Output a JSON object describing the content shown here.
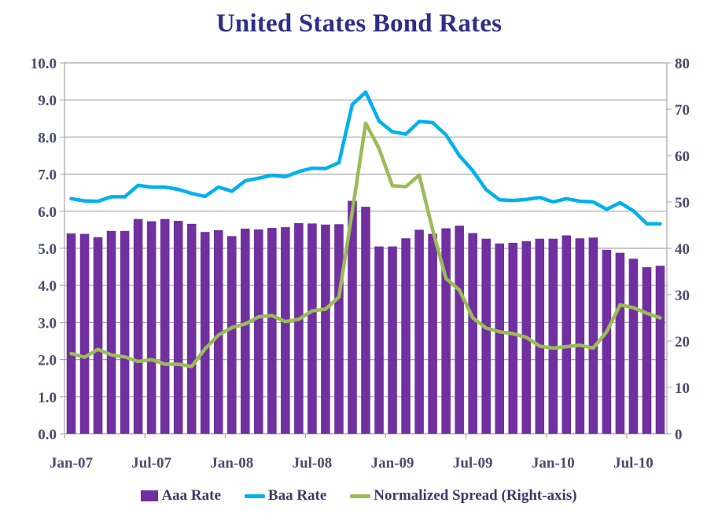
{
  "chart_data": {
    "type": "bar",
    "title": "United States Bond Rates",
    "xlabel": "",
    "ylabel": "",
    "y2label": "",
    "ylim": [
      0,
      10
    ],
    "y2lim": [
      0,
      80
    ],
    "yticks": [
      "0.0",
      "1.0",
      "2.0",
      "3.0",
      "4.0",
      "5.0",
      "6.0",
      "7.0",
      "8.0",
      "9.0",
      "10.0"
    ],
    "y2ticks": [
      "0",
      "10",
      "20",
      "30",
      "40",
      "50",
      "60",
      "70",
      "80"
    ],
    "xtick_labels": [
      "Jan-07",
      "Jul-07",
      "Jan-08",
      "Jul-08",
      "Jan-09",
      "Jul-09",
      "Jan-10",
      "Jul-10"
    ],
    "xtick_every": 6,
    "grid": "horizontal",
    "legend_position": "bottom",
    "categories": [
      "Jan-07",
      "Feb-07",
      "Mar-07",
      "Apr-07",
      "May-07",
      "Jun-07",
      "Jul-07",
      "Aug-07",
      "Sep-07",
      "Oct-07",
      "Nov-07",
      "Dec-07",
      "Jan-08",
      "Feb-08",
      "Mar-08",
      "Apr-08",
      "May-08",
      "Jun-08",
      "Jul-08",
      "Aug-08",
      "Sep-08",
      "Oct-08",
      "Nov-08",
      "Dec-08",
      "Jan-09",
      "Feb-09",
      "Mar-09",
      "Apr-09",
      "May-09",
      "Jun-09",
      "Jul-09",
      "Aug-09",
      "Sep-09",
      "Oct-09",
      "Nov-09",
      "Dec-09",
      "Jan-10",
      "Feb-10",
      "Mar-10",
      "Apr-10",
      "May-10",
      "Jun-10",
      "Jul-10",
      "Aug-10",
      "Sep-10"
    ],
    "series": [
      {
        "name": "Aaa Rate",
        "type": "bar",
        "axis": "left",
        "color": "#7030a0",
        "values": [
          5.4,
          5.39,
          5.3,
          5.47,
          5.47,
          5.79,
          5.73,
          5.79,
          5.74,
          5.66,
          5.44,
          5.49,
          5.33,
          5.53,
          5.51,
          5.55,
          5.57,
          5.68,
          5.67,
          5.64,
          5.65,
          6.28,
          6.12,
          5.05,
          5.05,
          5.27,
          5.5,
          5.39,
          5.54,
          5.61,
          5.41,
          5.26,
          5.13,
          5.15,
          5.19,
          5.26,
          5.26,
          5.35,
          5.27,
          5.29,
          4.96,
          4.88,
          4.72,
          4.49,
          4.53
        ]
      },
      {
        "name": "Baa Rate",
        "type": "line",
        "axis": "left",
        "color": "#00b0f0",
        "values": [
          6.34,
          6.28,
          6.27,
          6.39,
          6.39,
          6.7,
          6.65,
          6.65,
          6.59,
          6.48,
          6.4,
          6.65,
          6.54,
          6.82,
          6.89,
          6.97,
          6.93,
          7.07,
          7.16,
          7.15,
          7.31,
          8.88,
          9.21,
          8.43,
          8.14,
          8.08,
          8.42,
          8.39,
          8.06,
          7.5,
          7.09,
          6.58,
          6.31,
          6.29,
          6.32,
          6.37,
          6.25,
          6.34,
          6.27,
          6.25,
          6.05,
          6.23,
          6.01,
          5.66,
          5.66
        ]
      },
      {
        "name": "Normalized Spread (Right-axis)",
        "type": "line",
        "axis": "right",
        "color": "#9bbb59",
        "values": [
          17.3,
          16.5,
          18.2,
          17.0,
          16.6,
          15.6,
          16.0,
          15.0,
          15.0,
          14.5,
          18.3,
          21.3,
          22.9,
          23.7,
          25.2,
          25.5,
          24.2,
          24.7,
          26.5,
          26.9,
          29.5,
          48.0,
          67.0,
          61.5,
          53.5,
          53.3,
          55.8,
          44.0,
          33.5,
          31.0,
          25.0,
          22.8,
          22.0,
          21.6,
          20.8,
          18.9,
          18.5,
          18.8,
          19.1,
          18.5,
          22.0,
          27.8,
          27.2,
          26.0,
          25.0
        ]
      }
    ]
  }
}
